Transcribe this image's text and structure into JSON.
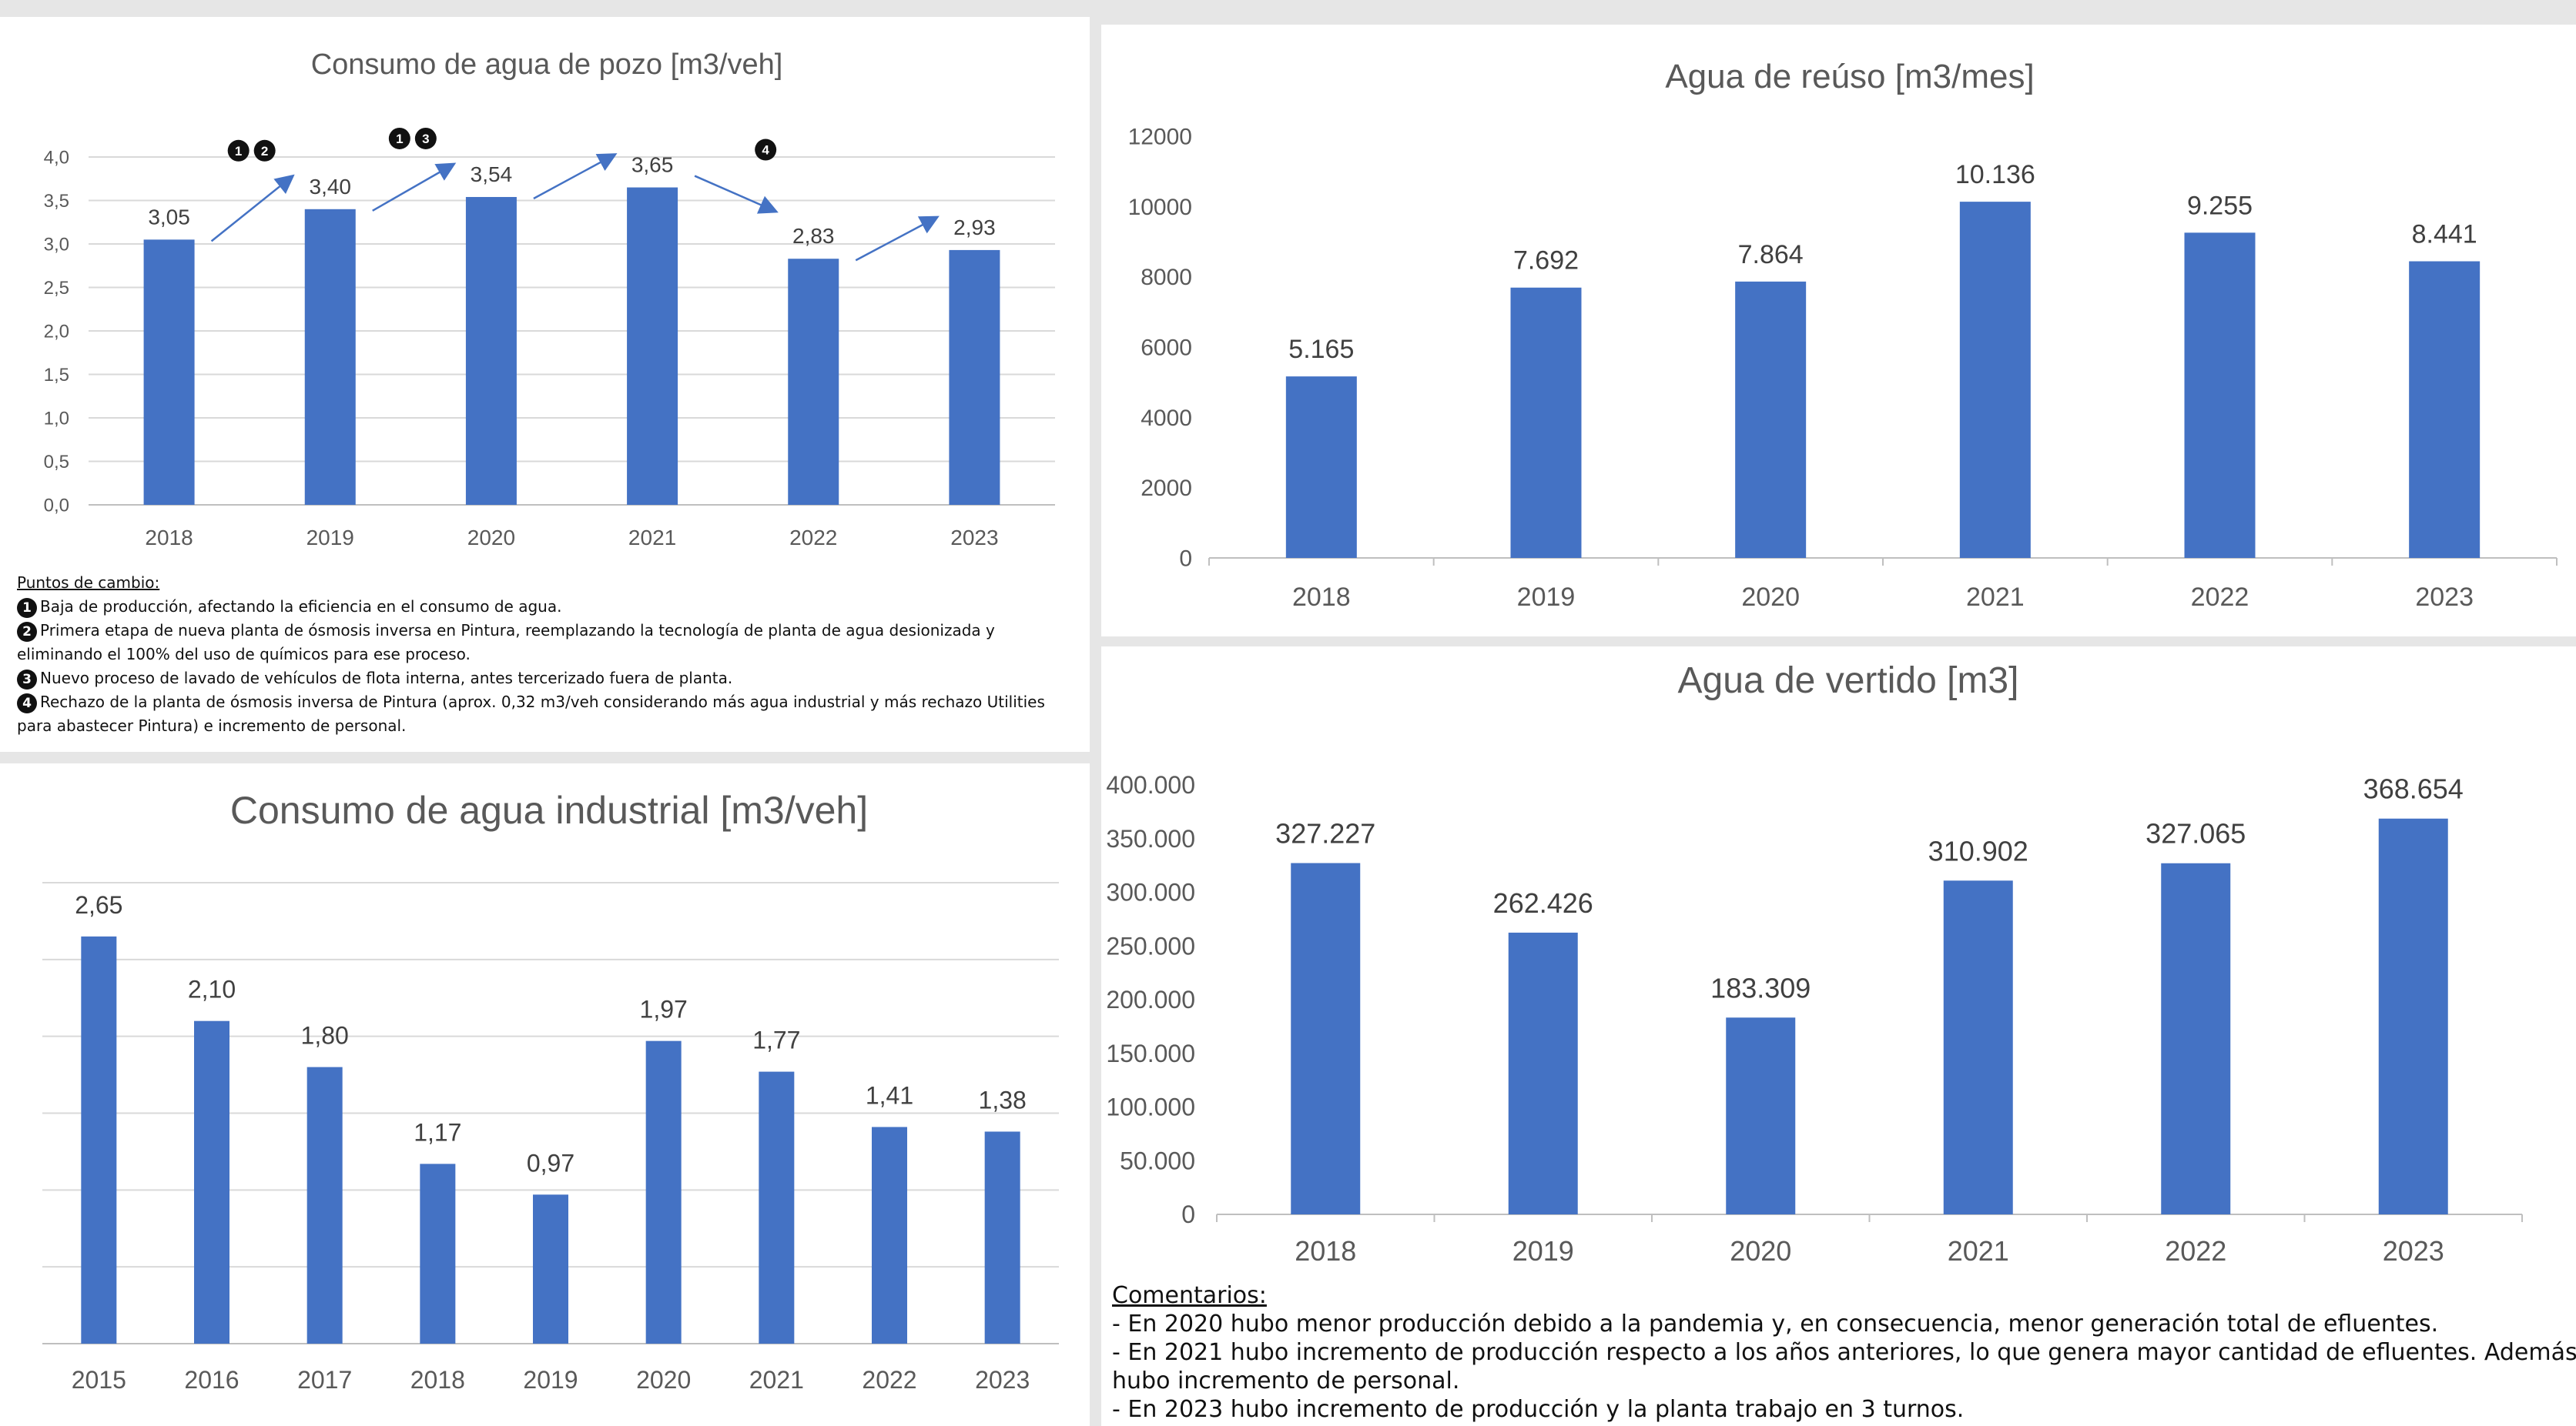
{
  "chart_data": [
    {
      "id": "pozo",
      "type": "bar",
      "title": "Consumo de agua de pozo [m3/veh]",
      "categories": [
        "2018",
        "2019",
        "2020",
        "2021",
        "2022",
        "2023"
      ],
      "values": [
        3.05,
        3.4,
        3.54,
        3.65,
        2.83,
        2.93
      ],
      "value_labels": [
        "3,05",
        "3,40",
        "3,54",
        "3,65",
        "2,83",
        "2,93"
      ],
      "y_ticks": [
        "0,0",
        "0,5",
        "1,0",
        "1,5",
        "2,0",
        "2,5",
        "3,0",
        "3,5",
        "4,0"
      ],
      "ylim": [
        0,
        4
      ],
      "grid": true,
      "annotations": [
        {
          "between": [
            "2018",
            "2019"
          ],
          "badges": [
            "1",
            "2"
          ],
          "trend": "up"
        },
        {
          "between": [
            "2019",
            "2020"
          ],
          "badges": [
            "1",
            "3"
          ],
          "trend": "up"
        },
        {
          "between": [
            "2020",
            "2021"
          ],
          "badges": [],
          "trend": "up"
        },
        {
          "between": [
            "2021",
            "2022"
          ],
          "badges": [
            "4"
          ],
          "trend": "down"
        },
        {
          "between": [
            "2022",
            "2023"
          ],
          "badges": [],
          "trend": "up"
        }
      ]
    },
    {
      "id": "reuso",
      "type": "bar",
      "title": "Agua de reúso [m3/mes]",
      "categories": [
        "2018",
        "2019",
        "2020",
        "2021",
        "2022",
        "2023"
      ],
      "values": [
        5165,
        7692,
        7864,
        10136,
        9255,
        8441
      ],
      "value_labels": [
        "5.165",
        "7.692",
        "7.864",
        "10.136",
        "9.255",
        "8.441"
      ],
      "y_ticks": [
        "0",
        "2000",
        "4000",
        "6000",
        "8000",
        "10000",
        "12000"
      ],
      "ylim": [
        0,
        12000
      ],
      "grid": false
    },
    {
      "id": "industrial",
      "type": "bar",
      "title": "Consumo de agua industrial [m3/veh]",
      "categories": [
        "2015",
        "2016",
        "2017",
        "2018",
        "2019",
        "2020",
        "2021",
        "2022",
        "2023"
      ],
      "values": [
        2.65,
        2.1,
        1.8,
        1.17,
        0.97,
        1.97,
        1.77,
        1.41,
        1.38
      ],
      "value_labels": [
        "2,65",
        "2,10",
        "1,80",
        "1,17",
        "0,97",
        "1,97",
        "1,77",
        "1,41",
        "1,38"
      ],
      "ylim": [
        0,
        3.0
      ],
      "grid": true
    },
    {
      "id": "vertido",
      "type": "bar",
      "title": "Agua de vertido [m3]",
      "categories": [
        "2018",
        "2019",
        "2020",
        "2021",
        "2022",
        "2023"
      ],
      "values": [
        327227,
        262426,
        183309,
        310902,
        327065,
        368654
      ],
      "value_labels": [
        "327.227",
        "262.426",
        "183.309",
        "310.902",
        "327.065",
        "368.654"
      ],
      "y_ticks": [
        "0",
        "50.000",
        "100.000",
        "150.000",
        "200.000",
        "250.000",
        "300.000",
        "350.000",
        "400.000"
      ],
      "ylim": [
        0,
        400000
      ],
      "grid": false
    }
  ],
  "colors": {
    "bar": "#4472c4",
    "arrow": "#4472c4",
    "text": "#595959",
    "grid": "#d9d9d9"
  },
  "puntos": {
    "header": "Puntos de cambio:",
    "items": [
      {
        "n": "1",
        "text": "Baja de producción, afectando la eficiencia en el consumo de agua."
      },
      {
        "n": "2",
        "text": "Primera etapa de nueva planta de ósmosis inversa en Pintura, reemplazando la tecnología de planta de agua desionizada y"
      },
      {
        "n": "",
        "text": "eliminando el 100% del uso de químicos para ese proceso."
      },
      {
        "n": "3",
        "text": "Nuevo proceso de lavado de vehículos de flota interna, antes tercerizado fuera de planta."
      },
      {
        "n": "4",
        "text": "Rechazo de la planta de ósmosis inversa de Pintura (aprox. 0,32 m3/veh considerando más agua industrial y más rechazo Utilities"
      },
      {
        "n": "",
        "text": "para abastecer Pintura) e incremento de personal."
      }
    ]
  },
  "comentarios": {
    "header": "Comentarios:",
    "lines": [
      "- En 2020 hubo menor producción debido a la pandemia y, en consecuencia, menor generación total de efluentes.",
      "- En 2021 hubo incremento de producción respecto a los años anteriores, lo que genera mayor cantidad de efluentes. Además",
      "hubo incremento de personal.",
      "- En 2023 hubo incremento de producción y la planta trabajo en 3 turnos."
    ]
  }
}
